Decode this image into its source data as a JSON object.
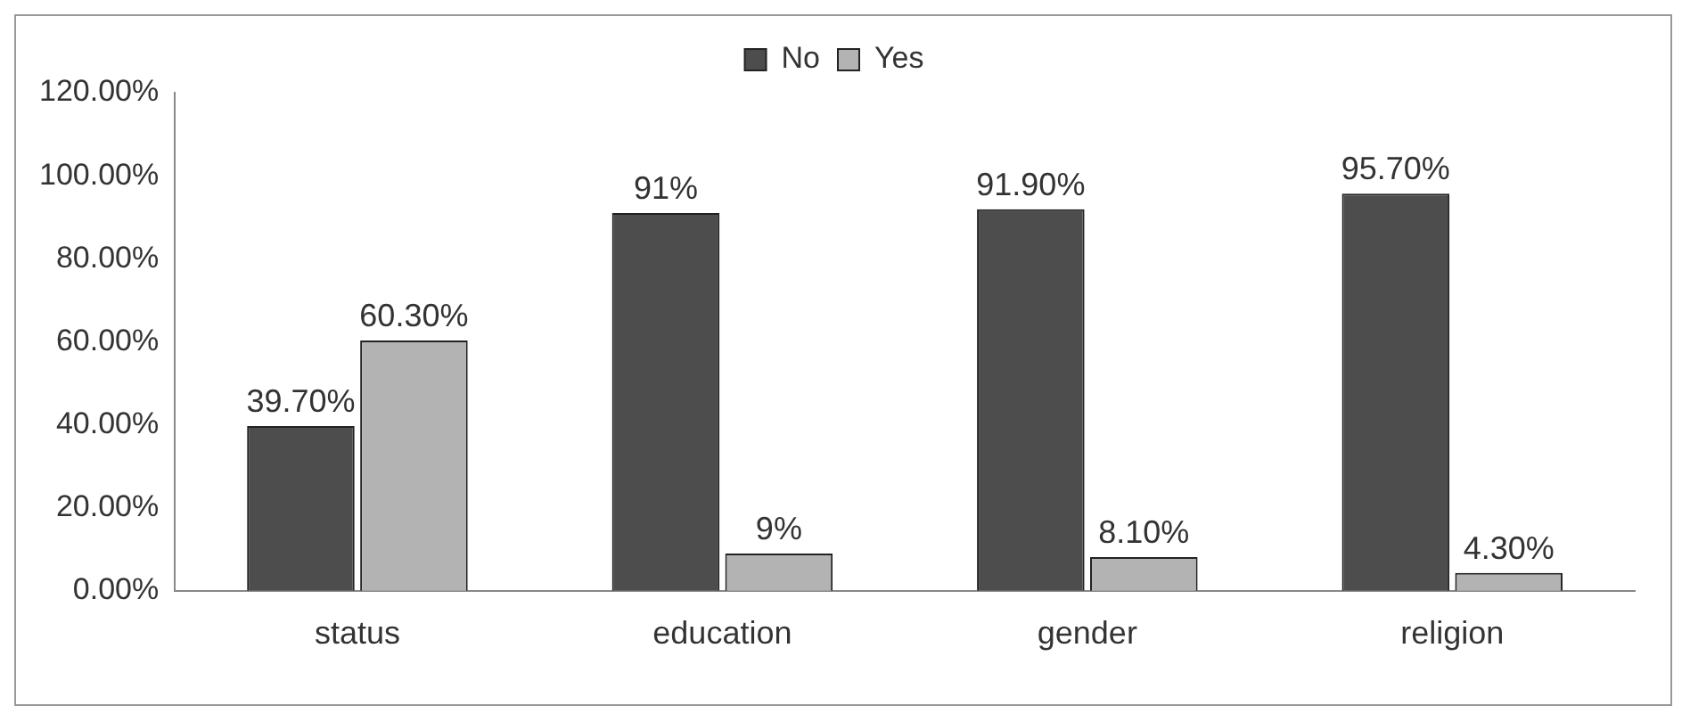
{
  "chart_data": {
    "type": "bar",
    "categories": [
      "status",
      "education",
      "gender",
      "religion"
    ],
    "series": [
      {
        "name": "No",
        "color": "#4d4d4d",
        "values": [
          39.7,
          91,
          91.9,
          95.7
        ],
        "value_labels": [
          "39.70%",
          "91%",
          "91.90%",
          "95.70%"
        ]
      },
      {
        "name": "Yes",
        "color": "#b3b3b3",
        "values": [
          60.3,
          9,
          8.1,
          4.3
        ],
        "value_labels": [
          "60.30%",
          "9%",
          "8.10%",
          "4.30%"
        ]
      }
    ],
    "ylim": [
      0,
      120
    ],
    "yticks": [
      {
        "value": 0,
        "label": "0.00%"
      },
      {
        "value": 20,
        "label": "20.00%"
      },
      {
        "value": 40,
        "label": "40.00%"
      },
      {
        "value": 60,
        "label": "60.00%"
      },
      {
        "value": 80,
        "label": "80.00%"
      },
      {
        "value": 100,
        "label": "100.00%"
      },
      {
        "value": 120,
        "label": "120.00%"
      }
    ],
    "grid": false,
    "legend": "top"
  }
}
